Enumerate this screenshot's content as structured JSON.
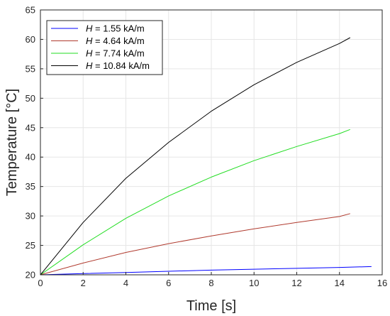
{
  "chart_data": {
    "type": "line",
    "xlabel": "Time [s]",
    "ylabel": "Temperature [°C]",
    "xlim": [
      0,
      16
    ],
    "ylim": [
      20,
      65
    ],
    "xticks": [
      0,
      2,
      4,
      6,
      8,
      10,
      12,
      14,
      16
    ],
    "yticks": [
      20,
      25,
      30,
      35,
      40,
      45,
      50,
      55,
      60,
      65
    ],
    "grid": true,
    "legend_position": "top-left",
    "series": [
      {
        "name": "H = 1.55 kA/m",
        "legend_var": "H",
        "legend_rest": " = 1.55 kA/m",
        "color": "#0000ff",
        "x": [
          0,
          2,
          4,
          6,
          8,
          10,
          12,
          14,
          15.5
        ],
        "y": [
          20,
          20.2,
          20.4,
          20.6,
          20.8,
          20.95,
          21.1,
          21.25,
          21.4
        ]
      },
      {
        "name": "H = 4.64 kA/m",
        "legend_var": "H",
        "legend_rest": " = 4.64 kA/m",
        "color": "#b03a2e",
        "x": [
          0,
          2,
          4,
          6,
          8,
          10,
          12,
          14,
          14.5
        ],
        "y": [
          20,
          22,
          23.8,
          25.3,
          26.6,
          27.8,
          28.9,
          29.9,
          30.4
        ]
      },
      {
        "name": "H = 7.74 kA/m",
        "legend_var": "H",
        "legend_rest": " = 7.74 kA/m",
        "color": "#22dd22",
        "x": [
          0,
          2,
          4,
          6,
          8,
          10,
          12,
          14,
          14.5
        ],
        "y": [
          20,
          25.1,
          29.6,
          33.4,
          36.6,
          39.4,
          41.8,
          44,
          44.7
        ]
      },
      {
        "name": "H = 10.84 kA/m",
        "legend_var": "H",
        "legend_rest": " = 10.84 kA/m",
        "color": "#000000",
        "x": [
          0,
          2,
          4,
          6,
          8,
          10,
          12,
          14,
          14.5
        ],
        "y": [
          20,
          28.9,
          36.4,
          42.5,
          47.8,
          52.3,
          56.1,
          59.3,
          60.3
        ]
      }
    ]
  }
}
